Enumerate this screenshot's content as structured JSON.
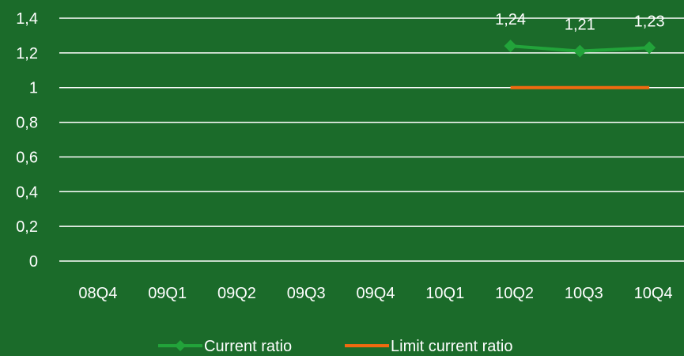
{
  "chart_data": {
    "type": "line",
    "categories": [
      "08Q4",
      "09Q1",
      "09Q2",
      "09Q3",
      "09Q4",
      "10Q1",
      "10Q2",
      "10Q3",
      "10Q4"
    ],
    "series": [
      {
        "name": "Current ratio",
        "values": [
          null,
          null,
          null,
          null,
          null,
          null,
          1.24,
          1.21,
          1.23
        ],
        "data_labels": [
          null,
          null,
          null,
          null,
          null,
          null,
          "1,24",
          "1,21",
          "1,23"
        ],
        "color": "#22a33a",
        "marker": "diamond"
      },
      {
        "name": "Limit current ratio",
        "values": [
          null,
          null,
          null,
          null,
          null,
          null,
          1,
          1,
          1
        ],
        "color": "#f06a10",
        "marker": "none"
      }
    ],
    "ylim": [
      0,
      1.4
    ],
    "y_ticks": [
      0,
      0.2,
      0.4,
      0.6,
      0.8,
      1,
      1.2,
      1.4
    ],
    "y_tick_labels": [
      "0",
      "0,2",
      "0,4",
      "0,6",
      "0,8",
      "1",
      "1,2",
      "1,4"
    ],
    "grid": true,
    "legend_position": "bottom",
    "background": "#1b6b2a",
    "gridline_color": "#ffffff",
    "text_color": "#ffffff"
  }
}
